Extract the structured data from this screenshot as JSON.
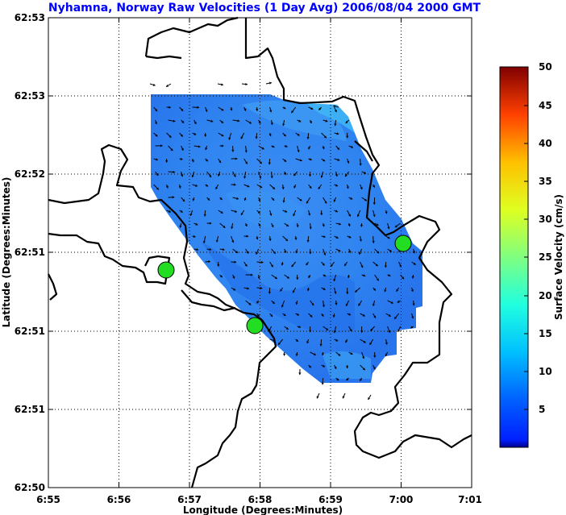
{
  "title": "Nyhamna, Norway Raw Velocities (1 Day Avg) 2006/08/04 2000 GMT",
  "chart_data": {
    "type": "heatmap",
    "title": "Nyhamna, Norway Raw Velocities (1 Day Avg) 2006/08/04 2000 GMT",
    "xlabel": "Longitude (Degrees:Minutes)",
    "ylabel": "Latitude (Degrees:Minutes)",
    "x_tick_labels": [
      "6:55",
      "6:56",
      "6:57",
      "6:58",
      "6:59",
      "7:00",
      "7:01"
    ],
    "y_tick_labels": [
      "62:53",
      "62:53",
      "62:52",
      "62:51",
      "62:51",
      "62:51",
      "62:50"
    ],
    "xlim": [
      "6:55",
      "7:01"
    ],
    "grid": true,
    "colorbar": {
      "label": "Surface Velocity (cm/s)",
      "ticks": [
        "5",
        "10",
        "15",
        "20",
        "25",
        "30",
        "35",
        "40",
        "45",
        "50"
      ],
      "range": [
        0,
        50
      ],
      "colormap": "jet"
    },
    "typical_speed_range_cm_s": [
      3,
      9
    ],
    "stations": [
      {
        "x": "6:56.7"
      },
      {
        "x": "6:57.9"
      },
      {
        "x": "7:00.0"
      }
    ]
  },
  "colors": {
    "title": "#0000ff",
    "coverage": "#2a7df0",
    "coverage_light": "#35a8f5",
    "station": "#22dd22",
    "coast": "#000000"
  }
}
